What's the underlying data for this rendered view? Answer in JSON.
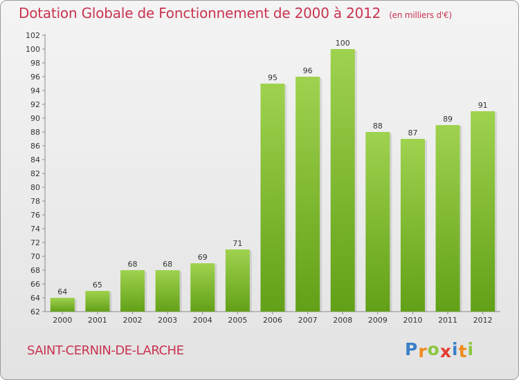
{
  "header": {
    "title": "Dotation Globale de Fonctionnement de 2000 à 2012",
    "unit": "(en milliers d'€)"
  },
  "footer": {
    "commune": "SAINT-CERNIN-DE-LARCHE",
    "logo_letters": [
      "P",
      "r",
      "o",
      "x",
      "i",
      "t",
      "i"
    ]
  },
  "colors": {
    "accent": "#c8334f",
    "bar_light": "#9fd24f",
    "bar_dark": "#62a017",
    "logo": [
      "#3a7fc8",
      "#f08a1c",
      "#8cc63f",
      "#e33b2e",
      "#3a7fc8",
      "#f08a1c",
      "#8cc63f"
    ]
  },
  "chart_data": {
    "type": "bar",
    "categories": [
      "2000",
      "2001",
      "2002",
      "2003",
      "2004",
      "2005",
      "2006",
      "2007",
      "2008",
      "2009",
      "2010",
      "2011",
      "2012"
    ],
    "values": [
      64,
      65,
      68,
      68,
      69,
      71,
      95,
      96,
      100,
      88,
      87,
      89,
      91
    ],
    "ylim": [
      62,
      102
    ],
    "yticks": [
      62,
      64,
      66,
      68,
      70,
      72,
      74,
      76,
      78,
      80,
      82,
      84,
      86,
      88,
      90,
      92,
      94,
      96,
      98,
      100,
      102
    ],
    "grid": false,
    "data_labels": true
  }
}
